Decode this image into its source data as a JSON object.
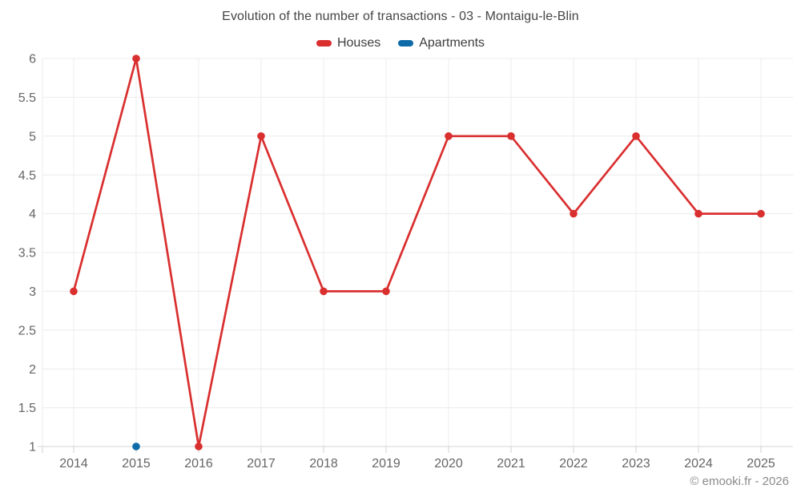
{
  "header": {
    "title": "Evolution of the number of transactions - 03 - Montaigu-le-Blin"
  },
  "footer": {
    "credit": "© emooki.fr - 2026"
  },
  "colors": {
    "houses": "#da2f2f",
    "apartments": "#0e6ba8",
    "grid": "#ececec",
    "axis_line": "#d4d4d4",
    "tick": "#d0d0d0",
    "axis_label": "#666666",
    "title_text": "#454545",
    "legend_text": "#3d3d3d",
    "footer_text": "#8b8b8b"
  },
  "chart_data": {
    "type": "line",
    "title": "Evolution of the number of transactions - 03 - Montaigu-le-Blin",
    "categories": [
      "2014",
      "2015",
      "2016",
      "2017",
      "2018",
      "2019",
      "2020",
      "2021",
      "2022",
      "2023",
      "2024",
      "2025"
    ],
    "series": [
      {
        "name": "Houses",
        "color": "#da2f2f",
        "values": [
          3,
          6,
          1,
          5,
          3,
          3,
          5,
          5,
          4,
          5,
          4,
          4
        ]
      },
      {
        "name": "Apartments",
        "color": "#0e6ba8",
        "values": [
          null,
          1,
          null,
          null,
          null,
          null,
          null,
          null,
          null,
          null,
          null,
          null
        ]
      }
    ],
    "xlabel": "",
    "ylabel": "",
    "ylim": [
      1,
      6
    ],
    "ytick_step": 0.5,
    "grid": true,
    "legend_position": "top",
    "marker_radius": 4.8,
    "annotations": [
      "© emooki.fr - 2026"
    ]
  }
}
